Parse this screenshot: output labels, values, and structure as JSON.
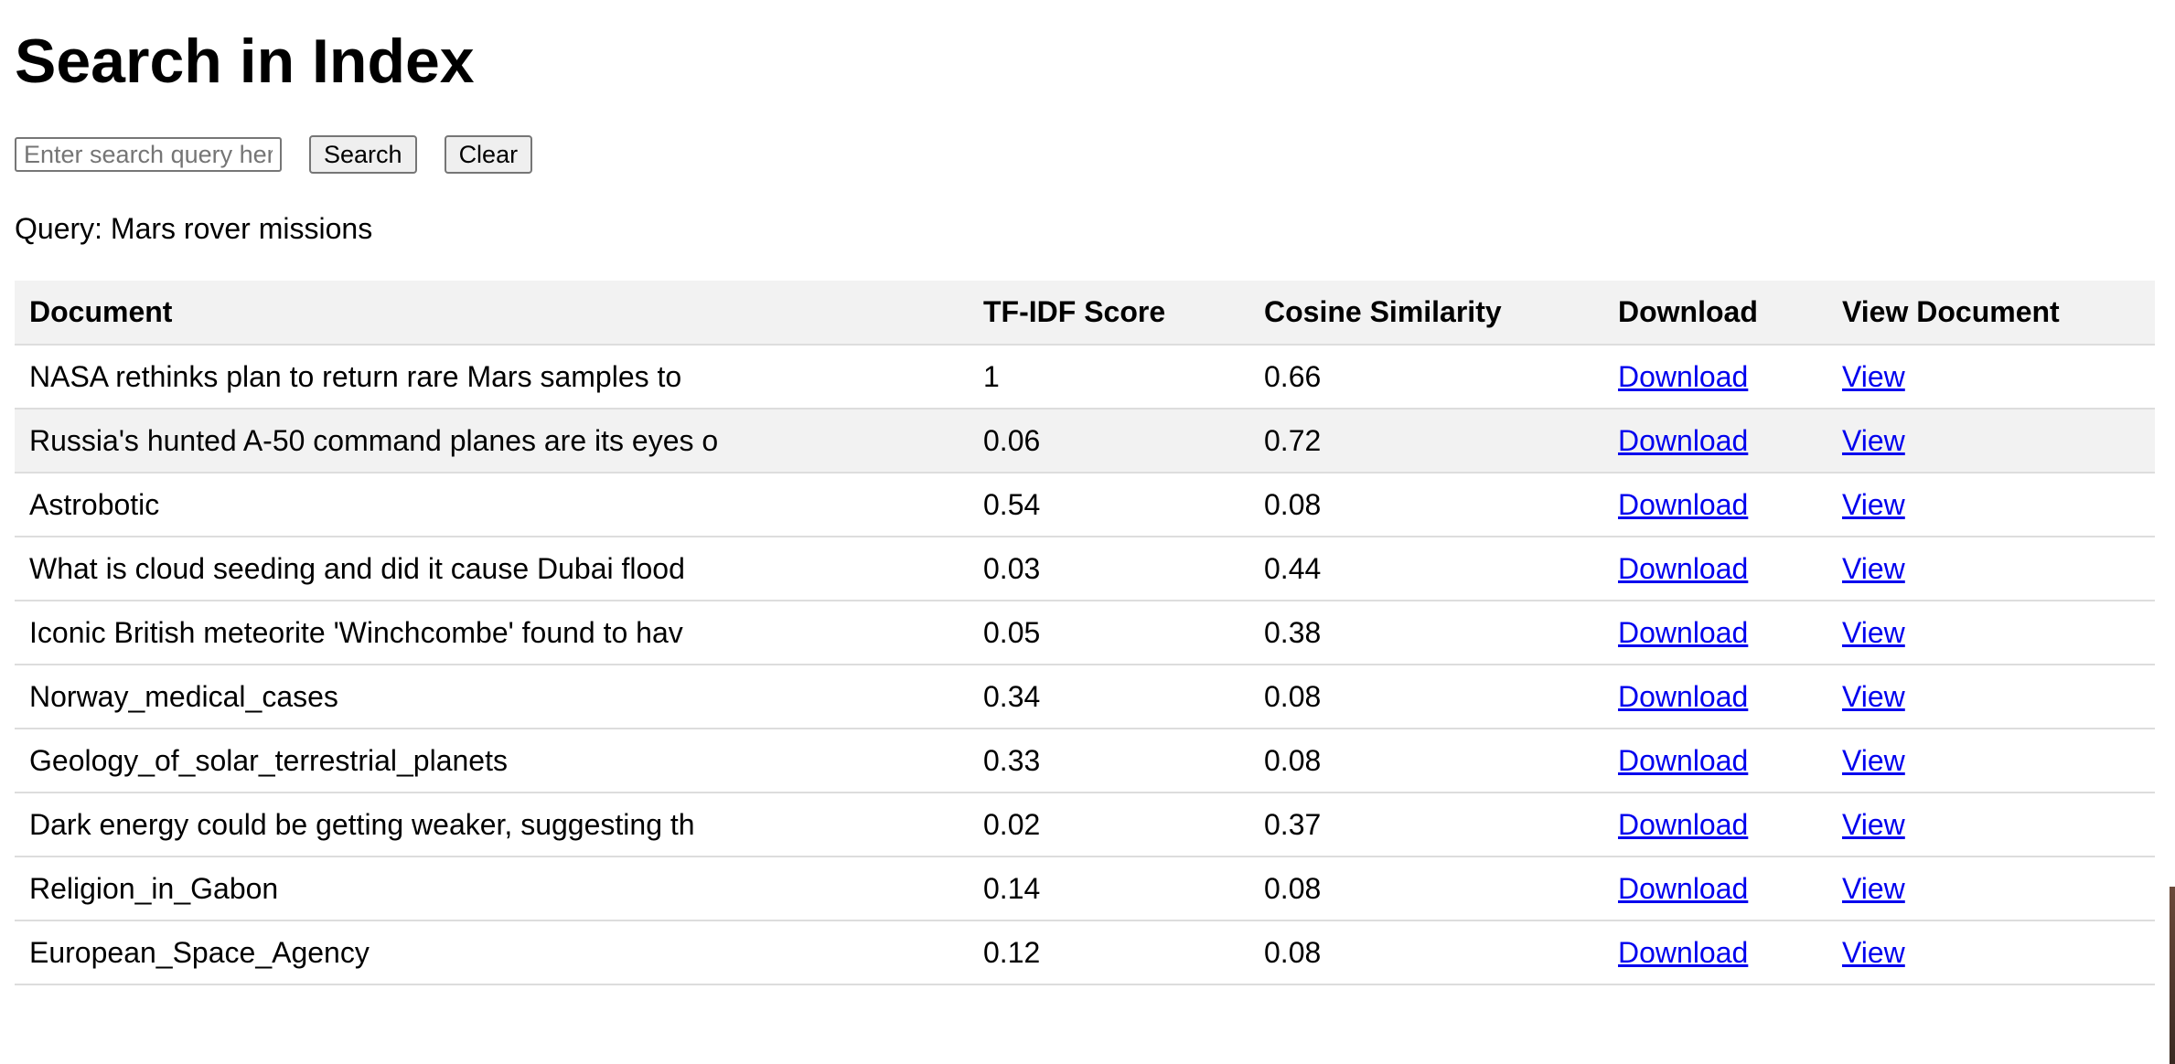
{
  "page": {
    "title": "Search in Index"
  },
  "search": {
    "placeholder": "Enter search query here",
    "value": "",
    "search_label": "Search",
    "clear_label": "Clear"
  },
  "query": {
    "label": "Query: Mars rover missions"
  },
  "table": {
    "headers": [
      "Document",
      "TF-IDF Score",
      "Cosine Similarity",
      "Download",
      "View Document"
    ],
    "rows": [
      {
        "document": "NASA rethinks plan to return rare Mars samples to",
        "tfidf": "1",
        "cosine": "0.66",
        "download": "Download",
        "view": "View"
      },
      {
        "document": "Russia's hunted A-50 command planes are its eyes o",
        "tfidf": "0.06",
        "cosine": "0.72",
        "download": "Download",
        "view": "View"
      },
      {
        "document": "Astrobotic",
        "tfidf": "0.54",
        "cosine": "0.08",
        "download": "Download",
        "view": "View"
      },
      {
        "document": "What is cloud seeding and did it cause Dubai flood",
        "tfidf": "0.03",
        "cosine": "0.44",
        "download": "Download",
        "view": "View"
      },
      {
        "document": "Iconic British meteorite 'Winchcombe' found to hav",
        "tfidf": "0.05",
        "cosine": "0.38",
        "download": "Download",
        "view": "View"
      },
      {
        "document": "Norway_medical_cases",
        "tfidf": "0.34",
        "cosine": "0.08",
        "download": "Download",
        "view": "View"
      },
      {
        "document": "Geology_of_solar_terrestrial_planets",
        "tfidf": "0.33",
        "cosine": "0.08",
        "download": "Download",
        "view": "View"
      },
      {
        "document": "Dark energy could be getting weaker, suggesting th",
        "tfidf": "0.02",
        "cosine": "0.37",
        "download": "Download",
        "view": "View"
      },
      {
        "document": "Religion_in_Gabon",
        "tfidf": "0.14",
        "cosine": "0.08",
        "download": "Download",
        "view": "View"
      },
      {
        "document": "European_Space_Agency",
        "tfidf": "0.12",
        "cosine": "0.08",
        "download": "Download",
        "view": "View"
      }
    ]
  },
  "colors": {
    "link": "#0000ee",
    "header_bg": "#f2f2f2",
    "row_alt_bg": "#f2f2f2",
    "border": "#dddddd"
  }
}
